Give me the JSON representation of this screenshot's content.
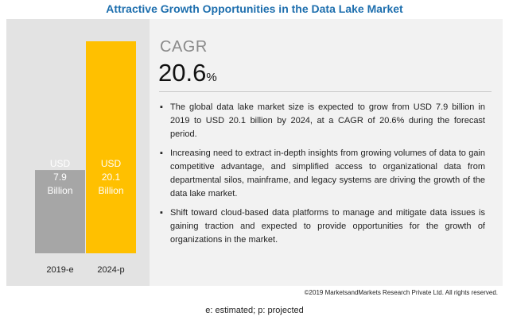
{
  "title": "Attractive Growth Opportunities in the Data Lake Market",
  "cagr": {
    "label": "CAGR",
    "value": "20.6",
    "unit": "%"
  },
  "bullets": [
    "The global data lake market size is expected to grow from USD 7.9 billion in 2019 to USD 20.1 billion by 2024, at a CAGR of 20.6% during the forecast period.",
    "Increasing need to extract in-depth insights from growing volumes of data to gain competitive advantage, and simplified access to organizational data from departmental silos, mainframe, and legacy systems are driving the growth of the data lake market.",
    "Shift toward cloud-based data platforms to manage and mitigate data issues is gaining traction and expected to provide opportunities for the growth of organizations in the market."
  ],
  "copyright": "©2019 MarketsandMarkets Research Private Ltd. All rights reserved.",
  "footnote": "e: estimated; p: projected",
  "colors": {
    "bar_2019": "#a6a6a6",
    "bar_2024": "#ffc000",
    "title": "#1e6fae"
  },
  "chart_data": {
    "type": "bar",
    "categories": [
      "2019-e",
      "2024-p"
    ],
    "values": [
      7.9,
      20.1
    ],
    "bar_labels": [
      [
        "USD",
        "7.9",
        "Billion"
      ],
      [
        "USD",
        "20.1",
        "Billion"
      ]
    ],
    "colors": [
      "#a6a6a6",
      "#ffc000"
    ],
    "ylim": [
      0,
      20.1
    ],
    "grid": false
  }
}
